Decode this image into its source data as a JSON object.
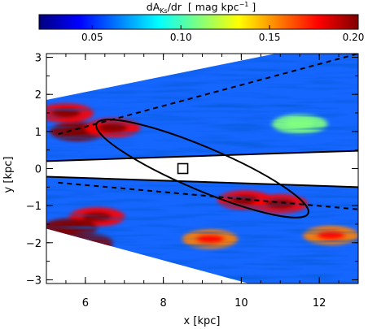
{
  "chart_data": {
    "type": "heatmap",
    "colorbar": {
      "title": "dA",
      "title_sub": "Ks",
      "title_rest": "/dr  [ mag kpc",
      "title_sup": "−1",
      "title_end": " ]",
      "range": [
        0.02,
        0.2
      ],
      "ticks": [
        0.05,
        0.1,
        0.15,
        0.2
      ],
      "tick_labels": [
        "0.05",
        "0.10",
        "0.15",
        "0.20"
      ],
      "colors": [
        "#00007f",
        "#0000ff",
        "#007fff",
        "#00ffff",
        "#7fff7f",
        "#ffff00",
        "#ff7f00",
        "#ff0000",
        "#7f0000"
      ]
    },
    "xlabel": "x [kpc]",
    "ylabel": "y [kpc]",
    "xlim": [
      5,
      13
    ],
    "ylim": [
      -3.1,
      3.1
    ],
    "x_ticks": [
      6,
      8,
      10,
      12
    ],
    "x_tick_labels": [
      "6",
      "8",
      "10",
      "12"
    ],
    "y_ticks": [
      3,
      2,
      1,
      0,
      -1,
      -2,
      -3
    ],
    "y_tick_labels": [
      "3",
      "2",
      "1",
      "0",
      "−1",
      "−2",
      "−3"
    ],
    "map_region": {
      "upper_wedge": {
        "inner_edge": [
          [
            5,
            0.2
          ],
          [
            13,
            0.48
          ]
        ],
        "outer_edge": [
          [
            5,
            1.85
          ],
          [
            13,
            3.55
          ]
        ]
      },
      "lower_wedge": {
        "inner_edge": [
          [
            5,
            -0.22
          ],
          [
            13,
            -0.5
          ]
        ],
        "outer_edge": [
          [
            5,
            -1.62
          ],
          [
            13,
            -3.9
          ]
        ]
      }
    },
    "dashed_lines": [
      {
        "name": "upper",
        "points": [
          [
            5.3,
            0.93
          ],
          [
            13,
            3.1
          ]
        ]
      },
      {
        "name": "lower",
        "points": [
          [
            5.3,
            -0.38
          ],
          [
            13,
            -1.1
          ]
        ]
      }
    ],
    "bar_ellipse": {
      "center": [
        9.0,
        0.0
      ],
      "semi_major": 2.95,
      "semi_minor": 0.58,
      "angle_deg": -23
    },
    "sun_marker": {
      "x": 8.5,
      "y": 0.0
    },
    "hotspots": [
      {
        "x": 5.8,
        "y": 1.0,
        "value": 0.2
      },
      {
        "x": 6.7,
        "y": 1.1,
        "value": 0.17
      },
      {
        "x": 5.5,
        "y": 1.5,
        "value": 0.18
      },
      {
        "x": 6.0,
        "y": -2.0,
        "value": 0.2
      },
      {
        "x": 6.3,
        "y": -1.3,
        "value": 0.17
      },
      {
        "x": 5.6,
        "y": -1.6,
        "value": 0.19
      },
      {
        "x": 10.1,
        "y": -0.85,
        "value": 0.18
      },
      {
        "x": 11.0,
        "y": -0.95,
        "value": 0.17
      },
      {
        "x": 12.3,
        "y": -1.8,
        "value": 0.16
      },
      {
        "x": 9.2,
        "y": -1.9,
        "value": 0.15
      },
      {
        "x": 11.5,
        "y": 1.2,
        "value": 0.1
      }
    ]
  }
}
